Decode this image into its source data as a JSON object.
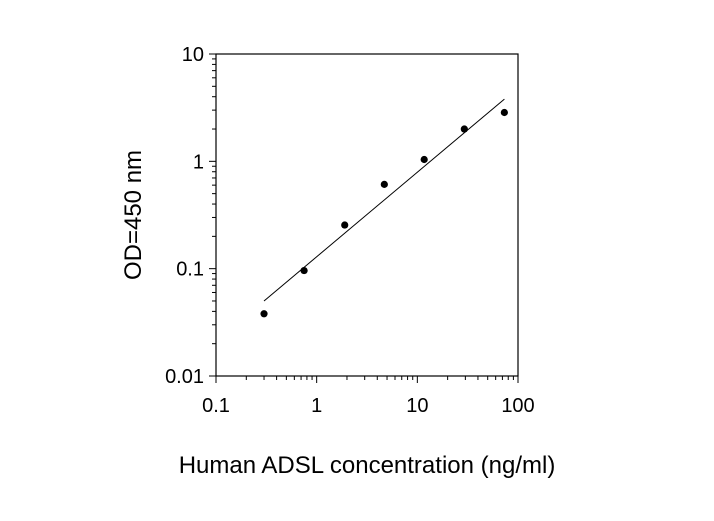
{
  "chart_data": {
    "type": "scatter",
    "xlabel": "Human ADSL concentration (ng/ml)",
    "ylabel": "OD=450 nm",
    "xscale": "log",
    "yscale": "log",
    "xlim": [
      0.1,
      100
    ],
    "ylim": [
      0.01,
      10
    ],
    "x_ticks": [
      0.1,
      1,
      10,
      100
    ],
    "x_tick_labels": [
      "0.1",
      "1",
      "10",
      "100"
    ],
    "y_ticks": [
      0.01,
      0.1,
      1,
      10
    ],
    "y_tick_labels": [
      "0.01",
      "0.1",
      "1",
      "10"
    ],
    "grid": false,
    "legend": false,
    "series": [
      {
        "x": [
          0.3,
          0.75,
          1.9,
          4.7,
          11.7,
          29.3,
          73.2
        ],
        "y": [
          0.038,
          0.096,
          0.255,
          0.61,
          1.04,
          2.0,
          2.85
        ],
        "marker": "filled-circle",
        "color": "#000000"
      }
    ],
    "fit_line": {
      "x": [
        0.3,
        73.2
      ],
      "y": [
        0.05,
        3.8
      ],
      "color": "#000000"
    }
  }
}
